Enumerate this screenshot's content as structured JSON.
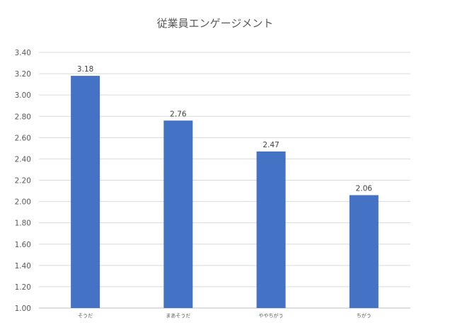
{
  "chart_data": {
    "type": "bar",
    "title": "従業員エンゲージメント",
    "categories": [
      "そうだ",
      "まあそうだ",
      "ややちがう",
      "ちがう"
    ],
    "values": [
      3.18,
      2.76,
      2.47,
      2.06
    ],
    "value_labels": [
      "3.18",
      "2.76",
      "2.47",
      "2.06"
    ],
    "xlabel": "",
    "ylabel": "",
    "ylim": [
      1.0,
      3.4
    ],
    "yticks": [
      1.0,
      1.2,
      1.4,
      1.6,
      1.8,
      2.0,
      2.2,
      2.4,
      2.6,
      2.8,
      3.0,
      3.2,
      3.4
    ],
    "ytick_labels": [
      "1.00",
      "1.20",
      "1.40",
      "1.60",
      "1.80",
      "2.00",
      "2.20",
      "2.40",
      "2.60",
      "2.80",
      "3.00",
      "3.20",
      "3.40"
    ],
    "grid": true,
    "legend": "none",
    "bar_color": "#4472c4"
  }
}
